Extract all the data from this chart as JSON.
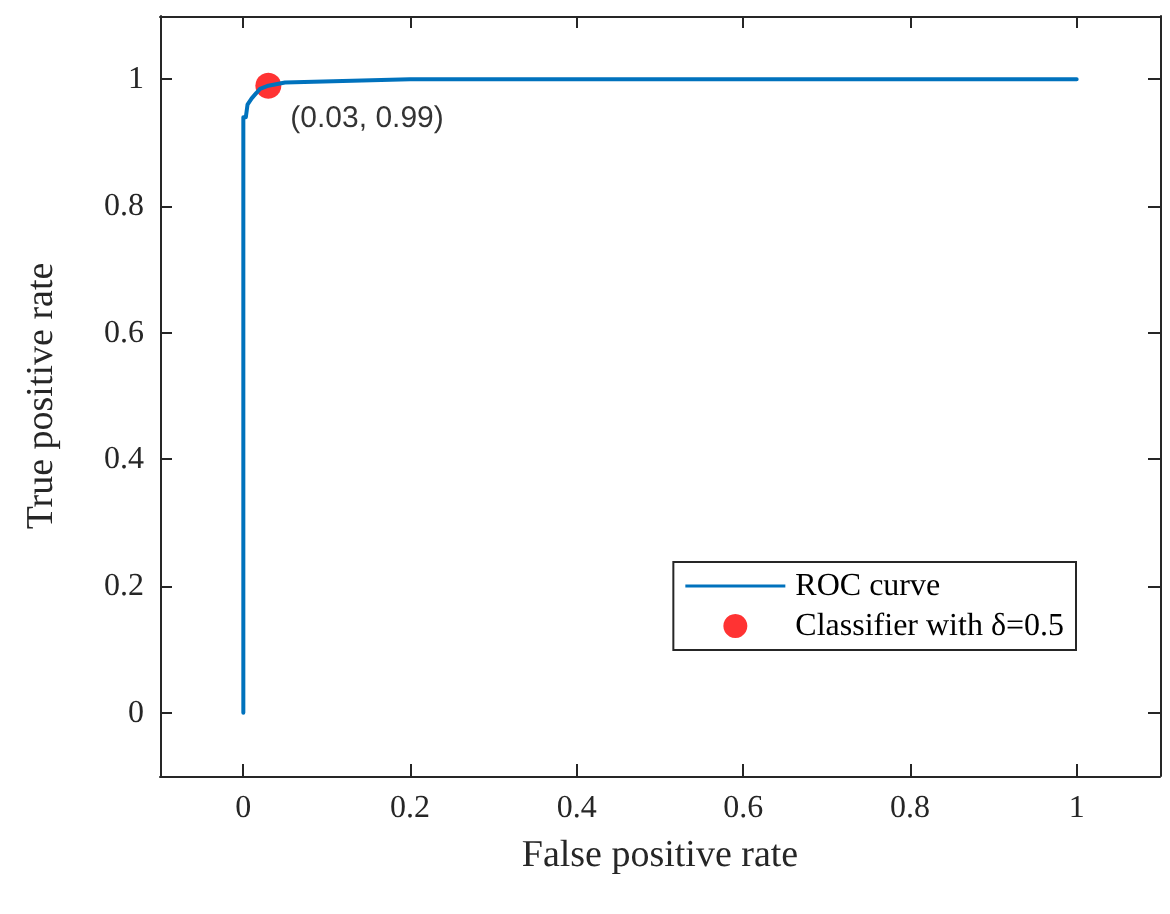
{
  "chart_data": {
    "type": "line",
    "xlabel": "False positive rate",
    "ylabel": "True positive rate",
    "xlim": [
      -0.1,
      1.1
    ],
    "ylim": [
      -0.1,
      1.1
    ],
    "xticks": [
      0,
      0.2,
      0.4,
      0.6,
      0.8,
      1
    ],
    "yticks": [
      0,
      0.2,
      0.4,
      0.6,
      0.8,
      1
    ],
    "grid": false,
    "legend": "bottom right",
    "marker": "none",
    "line_style": "solid",
    "series": [
      {
        "name": "ROC curve",
        "color": "#0072bd",
        "x": [
          0,
          0,
          0.003,
          0.005,
          0.01,
          0.02,
          0.03,
          0.05,
          0.2,
          1
        ],
        "values": [
          0,
          0.94,
          0.94,
          0.96,
          0.97,
          0.985,
          0.99,
          0.995,
          1,
          1
        ]
      },
      {
        "name": "Classifier with δ=0.5",
        "type": "scatter",
        "marker": "circle",
        "color": "#ff0000",
        "x": [
          0.03
        ],
        "values": [
          0.99
        ]
      }
    ],
    "annotations": [
      {
        "text": "(0.03, 0.99)",
        "x": 0.03,
        "y": 0.99
      }
    ]
  }
}
